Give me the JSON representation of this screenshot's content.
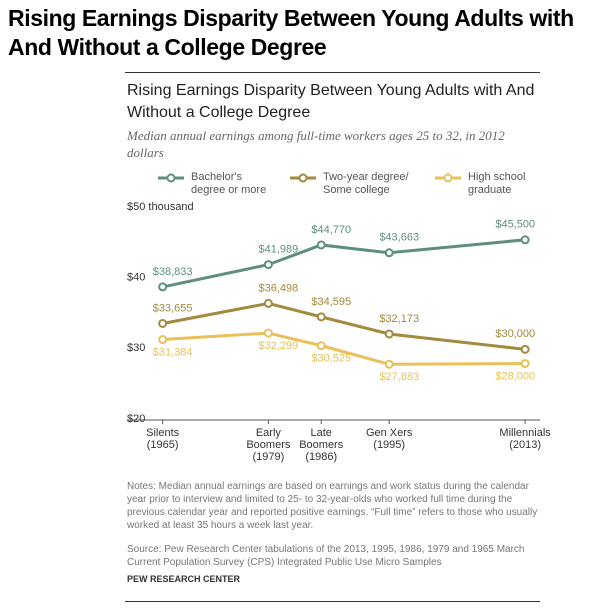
{
  "page_title": "Rising Earnings Disparity Between Young Adults with And Without a College Degree",
  "chart_data": {
    "type": "line",
    "title": "Rising Earnings Disparity Between Young Adults with And Without a College Degree",
    "subtitle": "Median annual earnings among full-time workers ages 25 to 32, in 2012 dollars",
    "x": [
      1965,
      1979,
      1986,
      1995,
      2013
    ],
    "xlim": [
      1962,
      2015.5
    ],
    "xticks": [
      {
        "value": 1965,
        "label": "Silents (1965)"
      },
      {
        "value": 1979,
        "label": "Early Boomers (1979)"
      },
      {
        "value": 1986,
        "label": "Late Boomers (1986)"
      },
      {
        "value": 1995,
        "label": "Gen Xers (1995)"
      },
      {
        "value": 2013,
        "label": "Millennials (2013)"
      }
    ],
    "ylim": [
      20,
      50
    ],
    "yticks": [
      {
        "value": 20,
        "label": "$20"
      },
      {
        "value": 30,
        "label": "$30"
      },
      {
        "value": 40,
        "label": "$40"
      },
      {
        "value": 50,
        "label": "$50 thousand"
      }
    ],
    "series": [
      {
        "name": "Bachelor's degree or more",
        "color": "#5e8f7e",
        "values": [
          38.833,
          41.989,
          44.77,
          43.663,
          45.5
        ],
        "value_labels": [
          "$38,833",
          "$41,989",
          "$44,770",
          "$43,663",
          "$45,500"
        ]
      },
      {
        "name": "Two-year degree/ Some college",
        "color": "#a48a3e",
        "values": [
          33.655,
          36.498,
          34.595,
          32.173,
          30.0
        ],
        "value_labels": [
          "$33,655",
          "$36,498",
          "$34,595",
          "$32,173",
          "$30,000"
        ]
      },
      {
        "name": "High school graduate",
        "color": "#e8c15a",
        "values": [
          31.384,
          32.299,
          30.525,
          27.883,
          28.0
        ],
        "value_labels": [
          "$31,384",
          "$32,299",
          "$30,525",
          "$27,883",
          "$28,000"
        ]
      }
    ],
    "notes": "Notes: Median annual earnings are based on earnings and work status during the calendar year prior to interview and limited to 25- to 32-year-olds who worked full time during the previous calendar year and reported positive earnings. “Full time” refers to those who usually worked at least 35 hours a week last year.",
    "source": "Source: Pew Research Center tabulations of the 2013, 1995, 1986, 1979 and 1965 March Current Population Survey (CPS) Integrated Public Use Micro Samples",
    "credit": "PEW RESEARCH CENTER"
  }
}
